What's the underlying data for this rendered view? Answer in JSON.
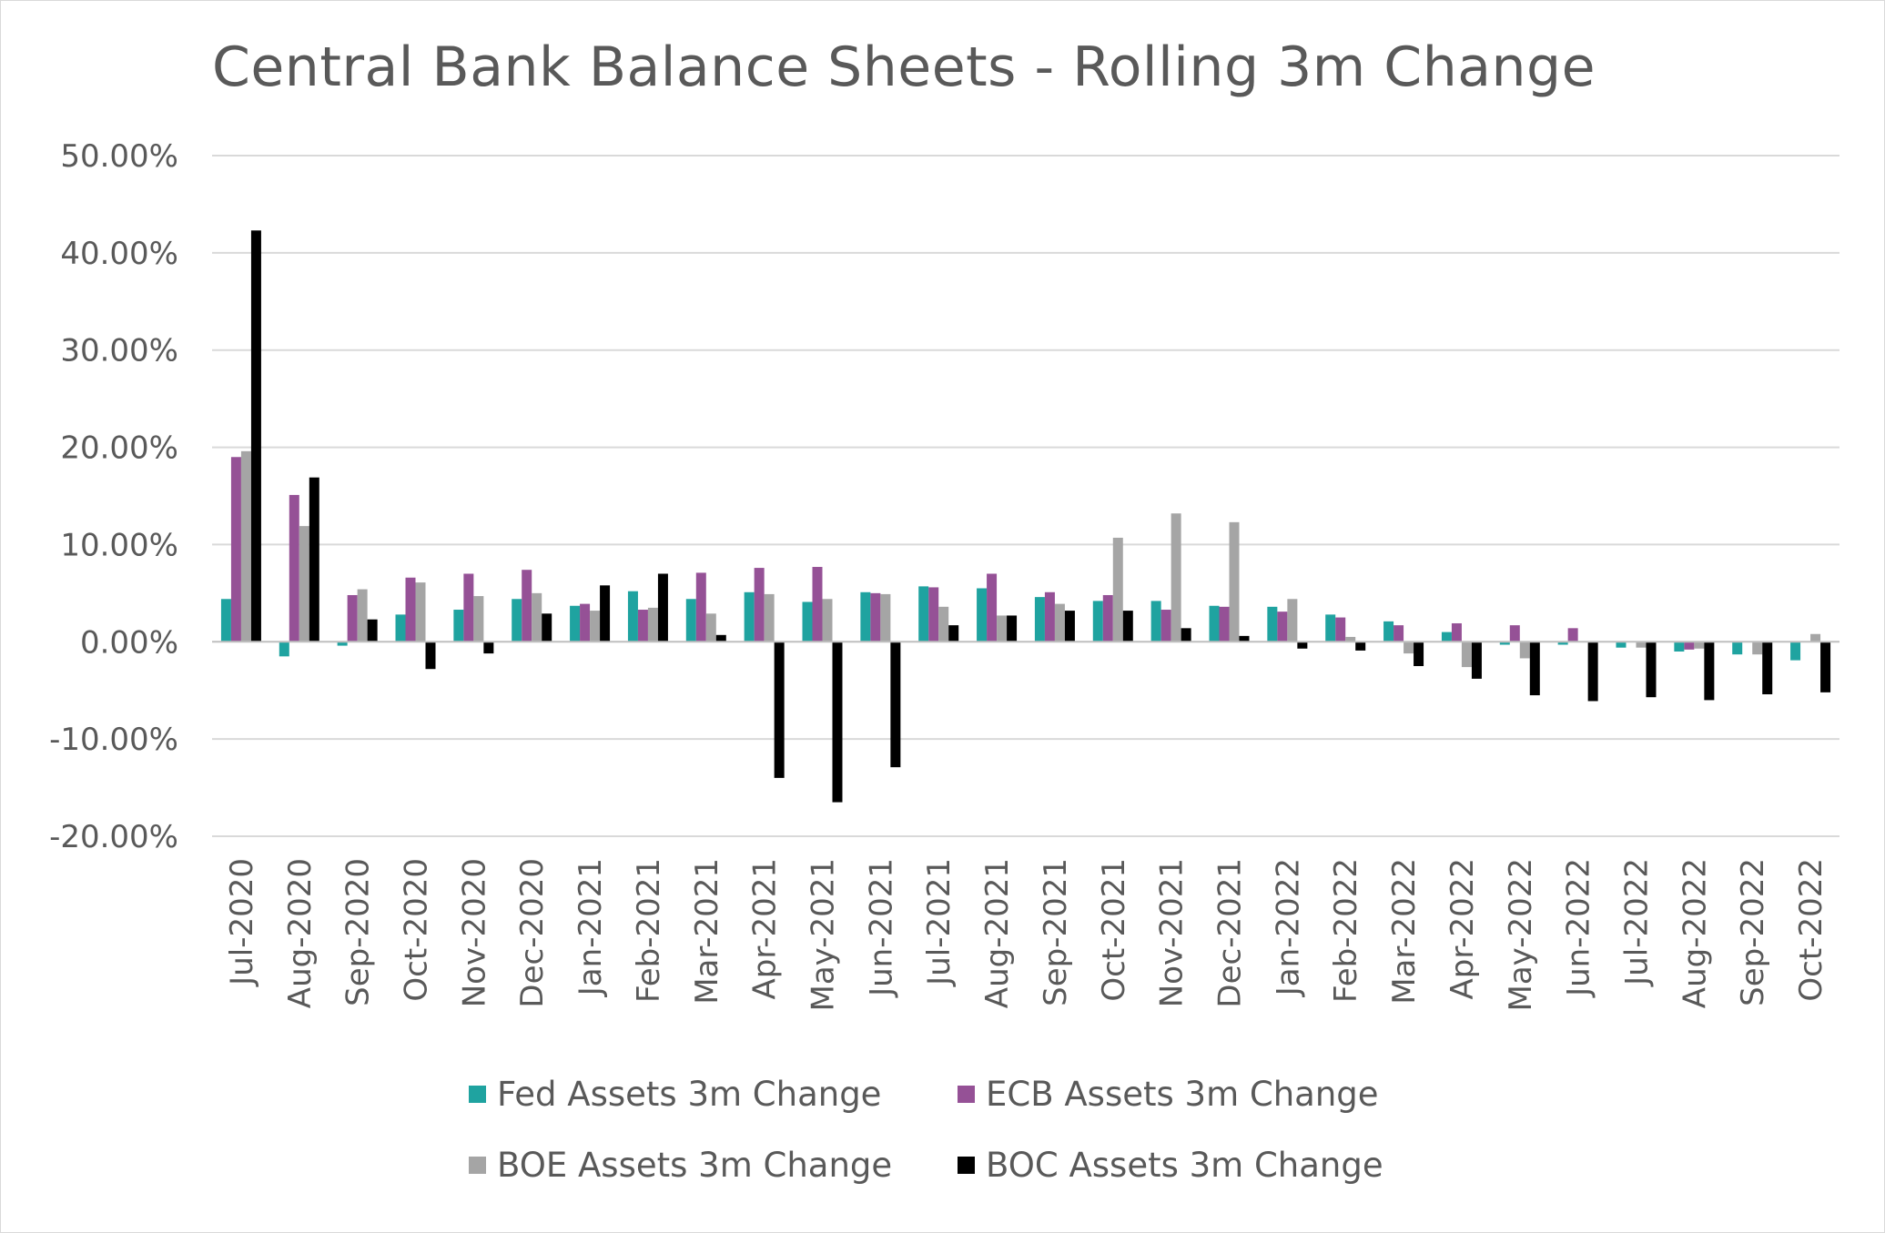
{
  "chart_data": {
    "type": "bar",
    "title": "Central Bank Balance Sheets - Rolling 3m Change",
    "xlabel": "",
    "ylabel": "",
    "ylim": [
      -20,
      50
    ],
    "yticks": [
      50,
      40,
      30,
      20,
      10,
      0,
      -10,
      -20
    ],
    "ytick_labels": [
      "50.00%",
      "40.00%",
      "30.00%",
      "20.00%",
      "10.00%",
      "0.00%",
      "-10.00%",
      "-20.00%"
    ],
    "grid": true,
    "legend_position": "bottom",
    "categories": [
      "Jul-2020",
      "Aug-2020",
      "Sep-2020",
      "Oct-2020",
      "Nov-2020",
      "Dec-2020",
      "Jan-2021",
      "Feb-2021",
      "Mar-2021",
      "Apr-2021",
      "May-2021",
      "Jun-2021",
      "Jul-2021",
      "Aug-2021",
      "Sep-2021",
      "Oct-2021",
      "Nov-2021",
      "Dec-2021",
      "Jan-2022",
      "Feb-2022",
      "Mar-2022",
      "Apr-2022",
      "May-2022",
      "Jun-2022",
      "Jul-2022",
      "Aug-2022",
      "Sep-2022",
      "Oct-2022"
    ],
    "series": [
      {
        "name": "Fed Assets 3m Change",
        "color": "#1fa3a0",
        "values": [
          4.4,
          -1.5,
          -0.4,
          2.8,
          3.3,
          4.4,
          3.7,
          5.2,
          4.4,
          5.1,
          4.1,
          5.1,
          5.7,
          5.5,
          4.6,
          4.2,
          4.2,
          3.7,
          3.6,
          2.8,
          2.1,
          1.0,
          -0.3,
          -0.3,
          -0.6,
          -1.0,
          -1.3,
          -1.9
        ]
      },
      {
        "name": "ECB Assets 3m Change",
        "color": "#955196",
        "values": [
          19.0,
          15.1,
          4.8,
          6.6,
          7.0,
          7.4,
          3.9,
          3.3,
          7.1,
          7.6,
          7.7,
          5.0,
          5.6,
          7.0,
          5.1,
          4.8,
          3.3,
          3.6,
          3.1,
          2.5,
          1.7,
          1.9,
          1.7,
          1.4,
          0.0,
          -0.8,
          0.0,
          0.0
        ]
      },
      {
        "name": "BOE Assets 3m Change",
        "color": "#a5a5a5",
        "values": [
          19.6,
          11.9,
          5.4,
          6.1,
          4.7,
          5.0,
          3.2,
          3.5,
          2.9,
          4.9,
          4.4,
          4.9,
          3.6,
          2.7,
          3.9,
          10.7,
          13.2,
          12.3,
          4.4,
          0.5,
          -1.2,
          -2.6,
          -1.7,
          0.0,
          -0.6,
          -0.7,
          -1.3,
          0.8
        ]
      },
      {
        "name": "BOC Assets 3m Change",
        "color": "#000000",
        "values": [
          42.3,
          16.9,
          2.3,
          -2.8,
          -1.2,
          2.9,
          5.8,
          7.0,
          0.7,
          -14.0,
          -16.5,
          -12.9,
          1.7,
          2.7,
          3.2,
          3.2,
          1.4,
          0.6,
          -0.7,
          -0.9,
          -2.5,
          -3.8,
          -5.5,
          -6.1,
          -5.7,
          -6.0,
          -5.4,
          -5.2
        ]
      }
    ]
  }
}
